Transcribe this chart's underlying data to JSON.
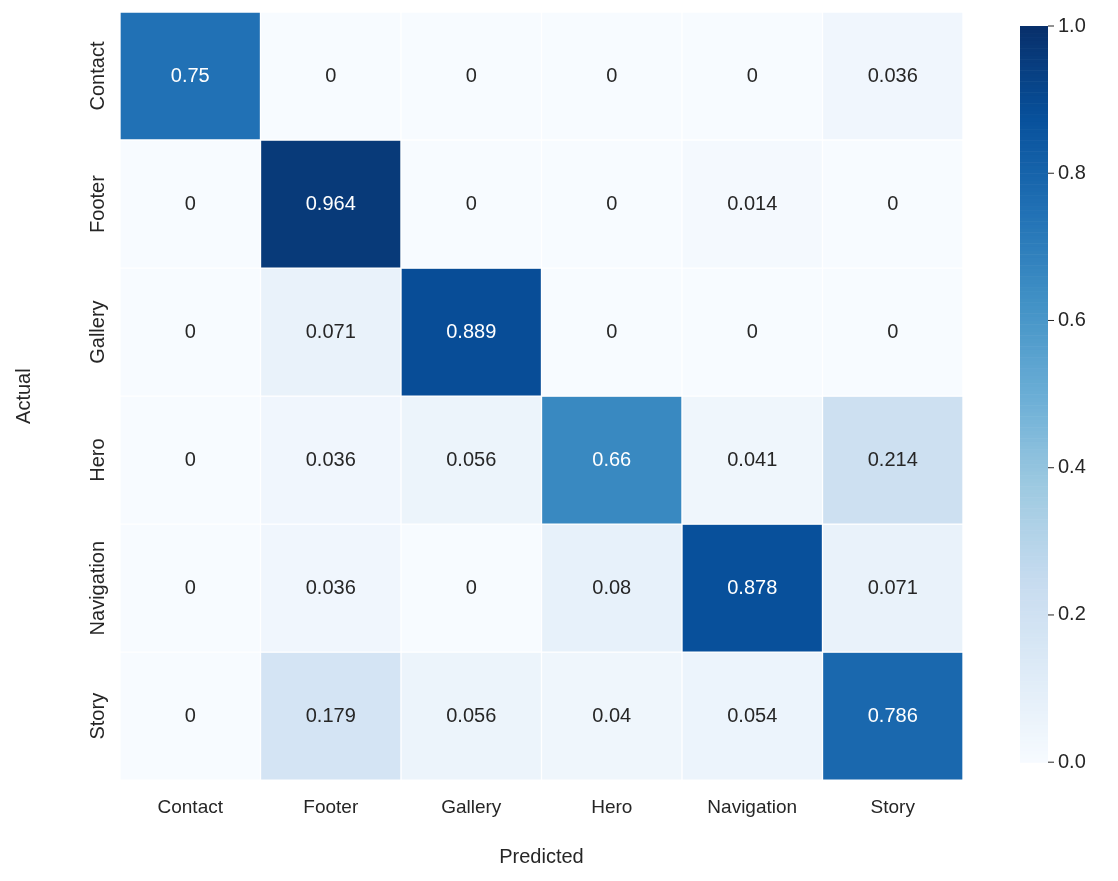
{
  "chart_data": {
    "type": "heatmap",
    "xlabel": "Predicted",
    "ylabel": "Actual",
    "categories": [
      "Contact",
      "Footer",
      "Gallery",
      "Hero",
      "Navigation",
      "Story"
    ],
    "y_categories": [
      "Contact",
      "Footer",
      "Gallery",
      "Hero",
      "Navigation",
      "Story"
    ],
    "cells": [
      [
        0.75,
        0,
        0,
        0,
        0,
        0.036
      ],
      [
        0,
        0.964,
        0,
        0,
        0.014,
        0
      ],
      [
        0,
        0.071,
        0.889,
        0,
        0,
        0
      ],
      [
        0,
        0.036,
        0.056,
        0.66,
        0.041,
        0.214
      ],
      [
        0,
        0.036,
        0,
        0.08,
        0.878,
        0.071
      ],
      [
        0,
        0.179,
        0.056,
        0.04,
        0.054,
        0.786
      ]
    ],
    "clim": [
      0,
      1
    ],
    "cticks": [
      {
        "value": 0,
        "label": "0.0"
      },
      {
        "value": 0.2,
        "label": "0.2"
      },
      {
        "value": 0.4,
        "label": "0.4"
      },
      {
        "value": 0.6,
        "label": "0.6"
      },
      {
        "value": 0.8,
        "label": "0.8"
      },
      {
        "value": 1,
        "label": "1.0"
      }
    ],
    "data_labels": true
  }
}
